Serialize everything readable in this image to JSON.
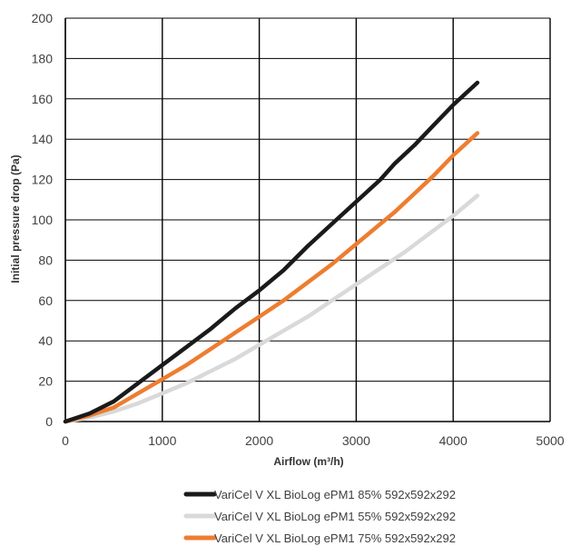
{
  "chart_data": {
    "type": "line",
    "xlabel": "Airflow (m³/h)",
    "ylabel": "Initial pressure drop (Pa)",
    "xlim": [
      0,
      5000
    ],
    "ylim": [
      0,
      200
    ],
    "x_ticks": [
      0,
      1000,
      2000,
      3000,
      4000,
      5000
    ],
    "y_ticks": [
      0,
      20,
      40,
      60,
      80,
      100,
      120,
      140,
      160,
      180,
      200
    ],
    "grid": "vertical and horizontal",
    "legend_position": "bottom",
    "series": [
      {
        "name": "VariCel V XL BioLog ePM1 85%  592x592x292",
        "color": "#1a1a1a",
        "x": [
          0,
          250,
          500,
          750,
          1000,
          1250,
          1500,
          1750,
          2000,
          2250,
          2500,
          2750,
          3000,
          3250,
          3400,
          3600,
          3800,
          4000,
          4250
        ],
        "y": [
          0,
          4,
          10,
          19,
          28,
          37,
          46,
          56,
          65,
          75,
          87,
          98,
          109,
          120,
          128,
          137,
          147,
          157,
          168
        ]
      },
      {
        "name": "VariCel V XL BioLog ePM1 55%  592x592x292",
        "color": "#d9d9d9",
        "x": [
          0,
          250,
          500,
          750,
          1000,
          1250,
          1500,
          1750,
          2000,
          2250,
          2500,
          2750,
          3000,
          3250,
          3500,
          3750,
          4000,
          4250
        ],
        "y": [
          0,
          2,
          5,
          9,
          14,
          19,
          25,
          31,
          38,
          45,
          52,
          60,
          68,
          76,
          84,
          93,
          102,
          112
        ]
      },
      {
        "name": "VariCel V XL BioLog ePM1 75%  592x592x292",
        "color": "#ed7d31",
        "x": [
          0,
          250,
          500,
          750,
          1000,
          1250,
          1500,
          1750,
          2000,
          2250,
          2500,
          2750,
          3000,
          3250,
          3400,
          3600,
          3800,
          4000,
          4250
        ],
        "y": [
          0,
          3,
          7,
          14,
          21,
          28,
          36,
          44,
          52,
          60,
          69,
          78,
          88,
          98,
          104,
          113,
          122,
          132,
          143
        ]
      }
    ]
  }
}
